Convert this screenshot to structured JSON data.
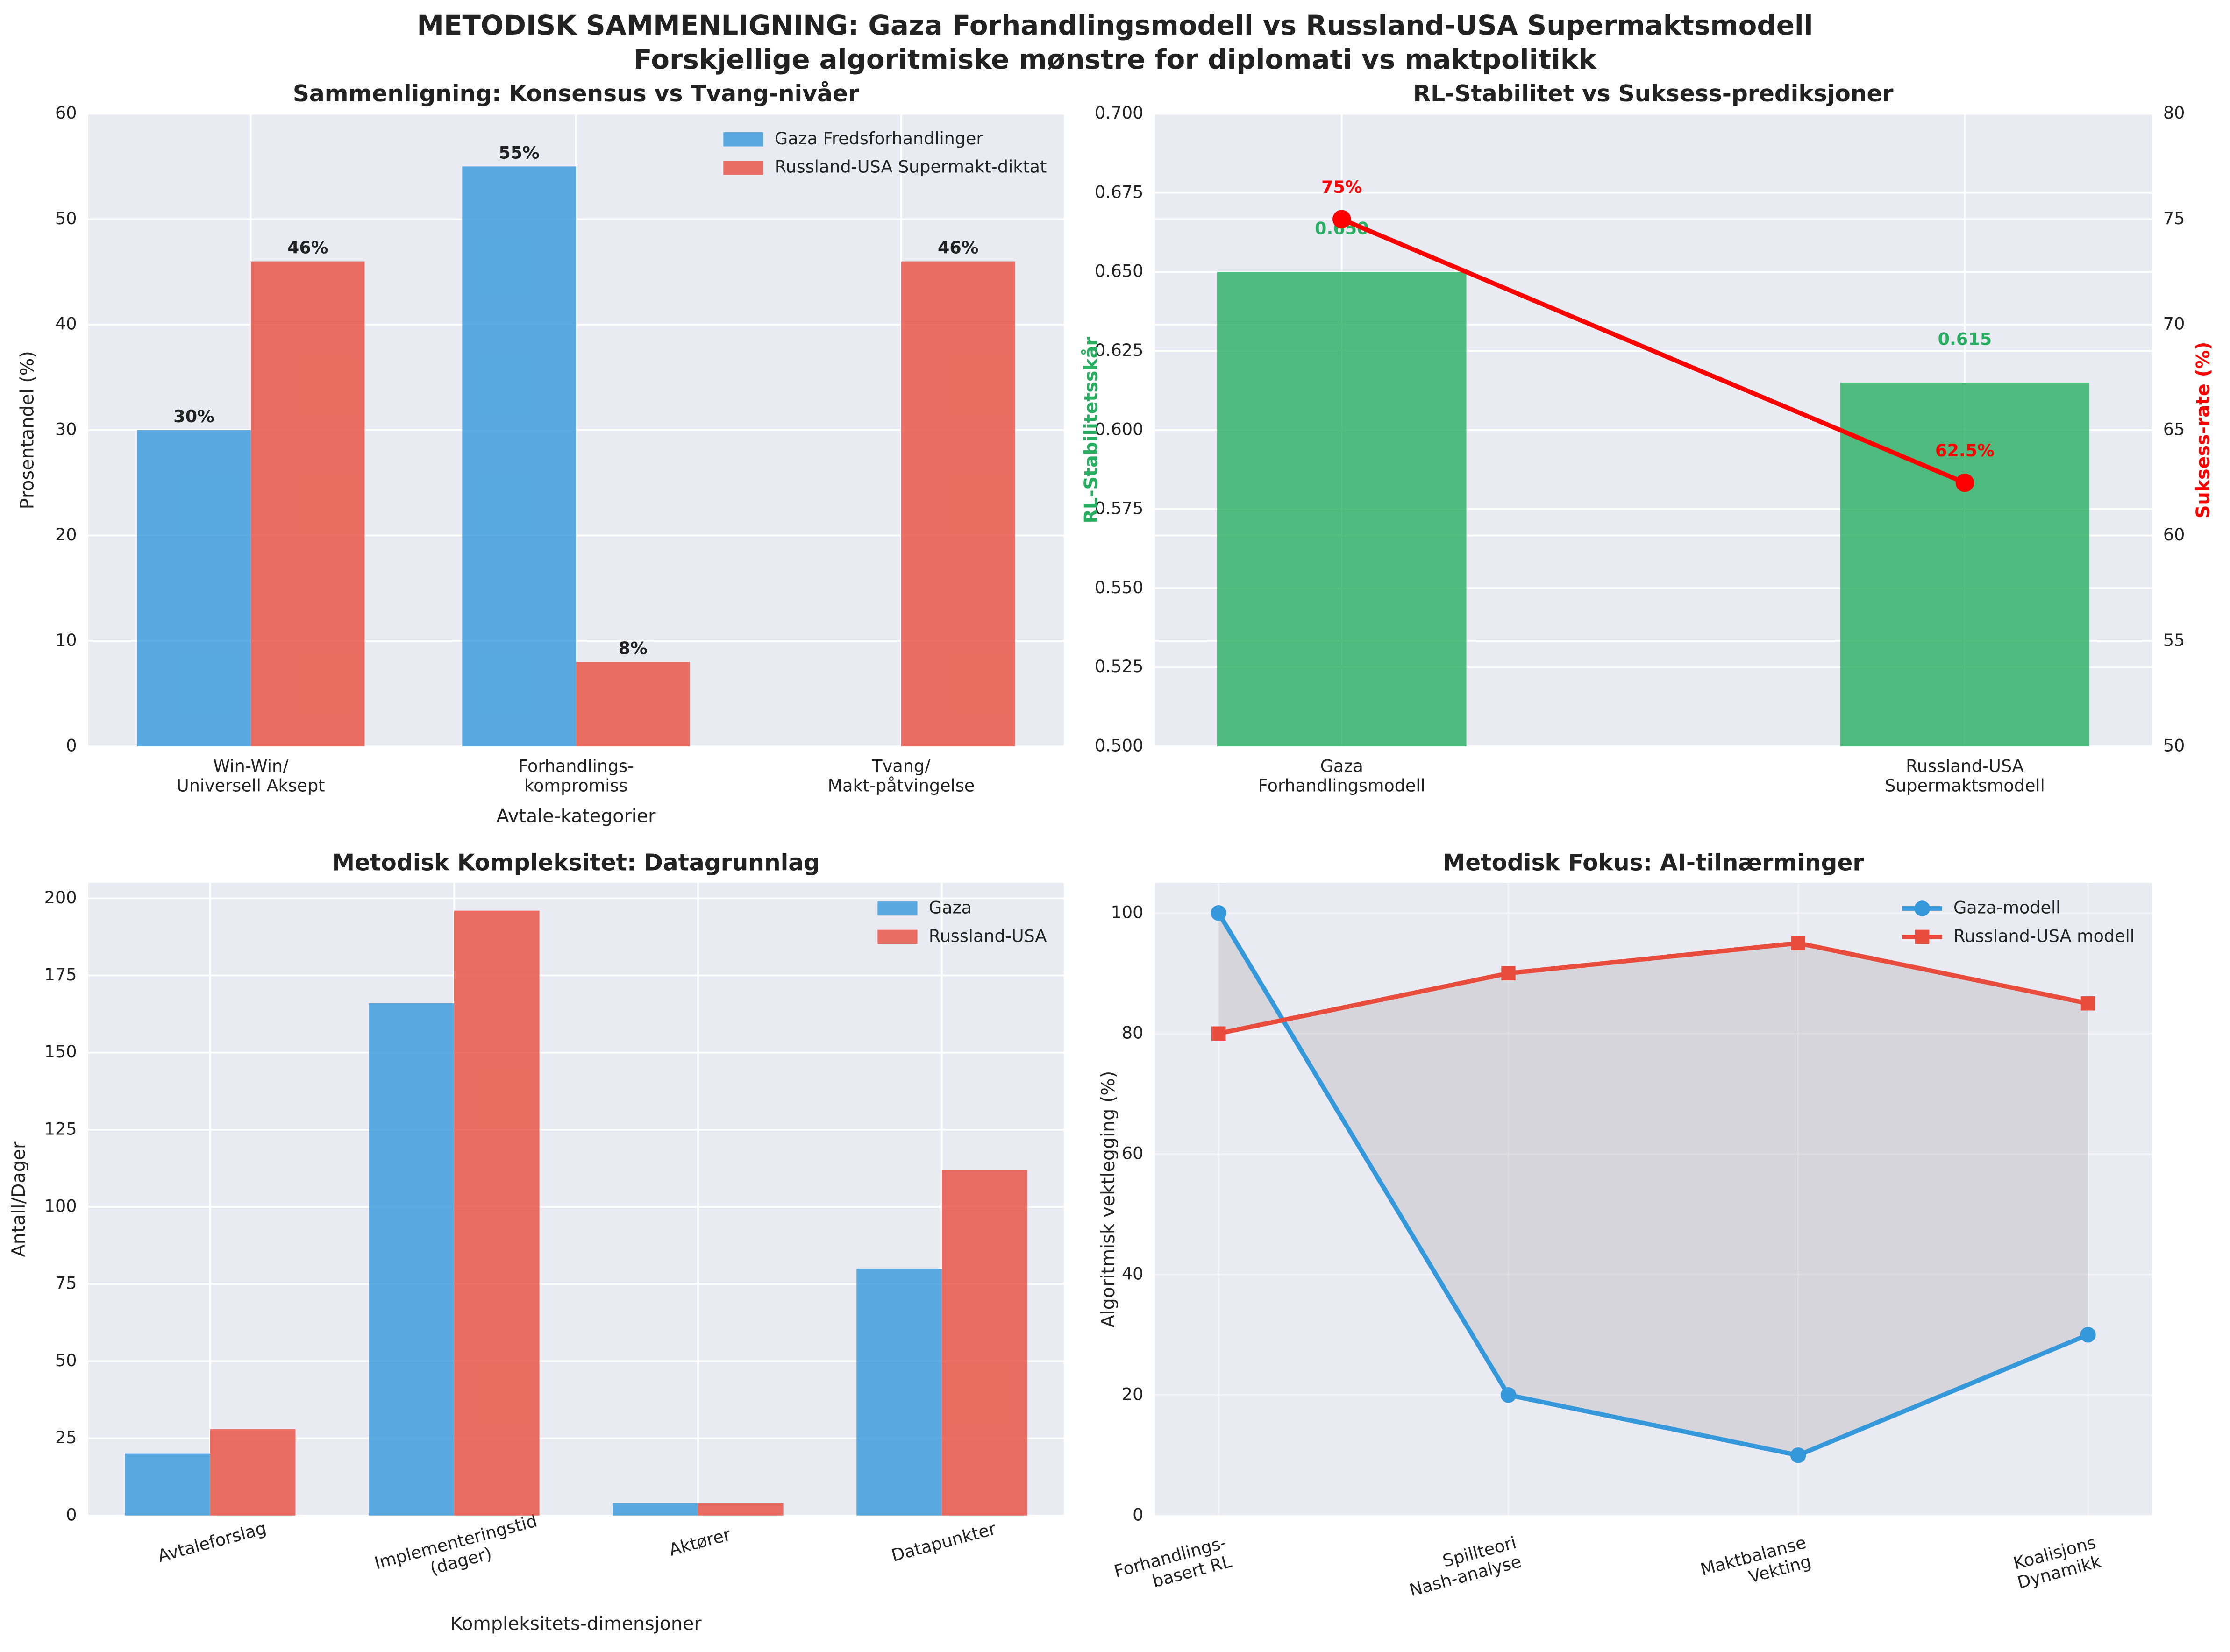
{
  "title": "METODISK SAMMENLIGNING: Gaza Forhandlingsmodell vs Russland-USA Supermaktsmodell",
  "subtitle": "Forskjellige algoritmiske mønstre for diplomati vs maktpolitikk",
  "chart_data": [
    {
      "type": "bar",
      "title": "Sammenligning: Konsensus vs Tvang-nivåer",
      "xlabel": "Avtale-kategorier",
      "ylabel": "Prosentandel (%)",
      "categories": [
        "Win-Win/\nUniversell Aksept",
        "Forhandlings-\nkompromiss",
        "Tvang/\nMakt-påtvingelse"
      ],
      "series": [
        {
          "name": "Gaza Fredsforhandlinger",
          "color": "#3498db",
          "values": [
            30,
            55,
            0
          ],
          "value_labels": [
            "30%",
            "55%",
            null
          ]
        },
        {
          "name": "Russland-USA Supermakt-diktat",
          "color": "#e74c3c",
          "values": [
            46,
            8,
            46
          ],
          "value_labels": [
            "46%",
            "8%",
            "46%"
          ]
        }
      ],
      "ylim": [
        0,
        60
      ],
      "yticks": [
        0,
        10,
        20,
        30,
        40,
        50,
        60
      ],
      "grid": true,
      "legend": "upper right"
    },
    {
      "type": "bar",
      "title": "RL-Stabilitet vs Suksess-prediksjoner",
      "ylabel": "RL-Stabilitetsskår",
      "ylabel_color": "#27ae60",
      "y2label": "Suksess-rate (%)",
      "y2label_color": "#ff0000",
      "categories": [
        "Gaza\nForhandlingsmodell",
        "Russland-USA\nSupermaktsmodell"
      ],
      "series": [
        {
          "type": "bar",
          "color": "#27ae60",
          "values": [
            0.65,
            0.615
          ],
          "value_labels": [
            "0.650",
            "0.615"
          ]
        },
        {
          "type": "line",
          "axis": "y2",
          "color": "#ff0000",
          "values": [
            75,
            62.5
          ],
          "value_labels": [
            "75%",
            "62.5%"
          ]
        }
      ],
      "ylim": [
        0.5,
        0.7
      ],
      "yticks": [
        {
          "value": 0.5,
          "label": "0.500"
        },
        {
          "value": 0.525,
          "label": "0.525"
        },
        {
          "value": 0.55,
          "label": "0.550"
        },
        {
          "value": 0.575,
          "label": "0.575"
        },
        {
          "value": 0.6,
          "label": "0.600"
        },
        {
          "value": 0.625,
          "label": "0.625"
        },
        {
          "value": 0.65,
          "label": "0.650"
        },
        {
          "value": 0.675,
          "label": "0.675"
        },
        {
          "value": 0.7,
          "label": "0.700"
        }
      ],
      "y2lim": [
        50,
        80
      ],
      "y2ticks": [
        50,
        55,
        60,
        65,
        70,
        75,
        80
      ],
      "grid": true
    },
    {
      "type": "bar",
      "title": "Metodisk Kompleksitet: Datagrunnlag",
      "xlabel": "Kompleksitets-dimensjoner",
      "ylabel": "Antall/Dager",
      "categories": [
        "Avtaleforslag",
        "Implementeringstid\n(dager)",
        "Aktører",
        "Datapunkter"
      ],
      "series": [
        {
          "name": "Gaza",
          "color": "#3498db",
          "values": [
            20,
            166,
            4,
            80
          ]
        },
        {
          "name": "Russland-USA",
          "color": "#e74c3c",
          "values": [
            28,
            196,
            4,
            112
          ]
        }
      ],
      "ylim": [
        0,
        205
      ],
      "yticks": [
        0,
        25,
        50,
        75,
        100,
        125,
        150,
        175,
        200
      ],
      "grid": true,
      "legend": "upper right"
    },
    {
      "type": "line",
      "title": "Metodisk Fokus: AI-tilnærminger",
      "ylabel": "Algoritmisk vektlegging (%)",
      "categories": [
        "Forhandlings-\nbasert RL",
        "Spillteori\nNash-analyse",
        "Maktbalanse\nVekting",
        "Koalisjons\nDynamikk"
      ],
      "series": [
        {
          "name": "Gaza-modell",
          "color": "#3498db",
          "marker": "circle",
          "values": [
            100,
            20,
            10,
            30
          ]
        },
        {
          "name": "Russland-USA modell",
          "color": "#e74c3c",
          "marker": "square",
          "values": [
            80,
            90,
            95,
            85
          ]
        }
      ],
      "fill_between": true,
      "ylim": [
        0,
        105
      ],
      "yticks": [
        0,
        20,
        40,
        60,
        80,
        100
      ],
      "grid": true,
      "legend": "upper right"
    }
  ]
}
